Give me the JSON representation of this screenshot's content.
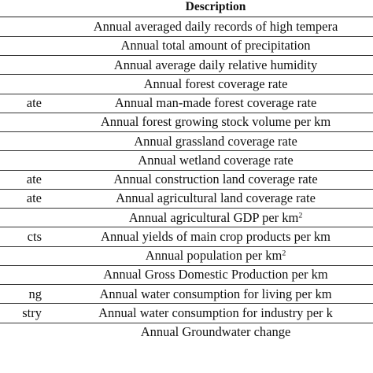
{
  "table": {
    "header": {
      "description": "Description"
    },
    "rows": [
      {
        "name": "",
        "description": "Annual averaged daily records of high tempera"
      },
      {
        "name": "",
        "description": "Annual total amount of precipitation"
      },
      {
        "name": "",
        "description": "Annual average daily relative humidity"
      },
      {
        "name": "",
        "description": "Annual forest coverage rate"
      },
      {
        "name": "ate",
        "description": "Annual man-made forest coverage rate"
      },
      {
        "name": "",
        "description": "Annual forest growing stock volume per km"
      },
      {
        "name": "",
        "description": "Annual grassland coverage rate"
      },
      {
        "name": "",
        "description": "Annual wetland coverage rate"
      },
      {
        "name": "ate",
        "description": "Annual construction land coverage rate"
      },
      {
        "name": "ate",
        "description": "Annual agricultural land coverage rate"
      },
      {
        "name": "",
        "description": "Annual agricultural GDP per km",
        "sup": "2"
      },
      {
        "name": "cts",
        "description": "Annual yields of main crop products per km"
      },
      {
        "name": "",
        "description": "Annual population per km",
        "sup": "2"
      },
      {
        "name": "",
        "description": "Annual Gross Domestic Production per km"
      },
      {
        "name": "ng",
        "description": "Annual water consumption for living per km"
      },
      {
        "name": "stry",
        "description": "Annual water consumption for industry per k"
      },
      {
        "name": "",
        "description": "Annual Groundwater change"
      }
    ]
  }
}
